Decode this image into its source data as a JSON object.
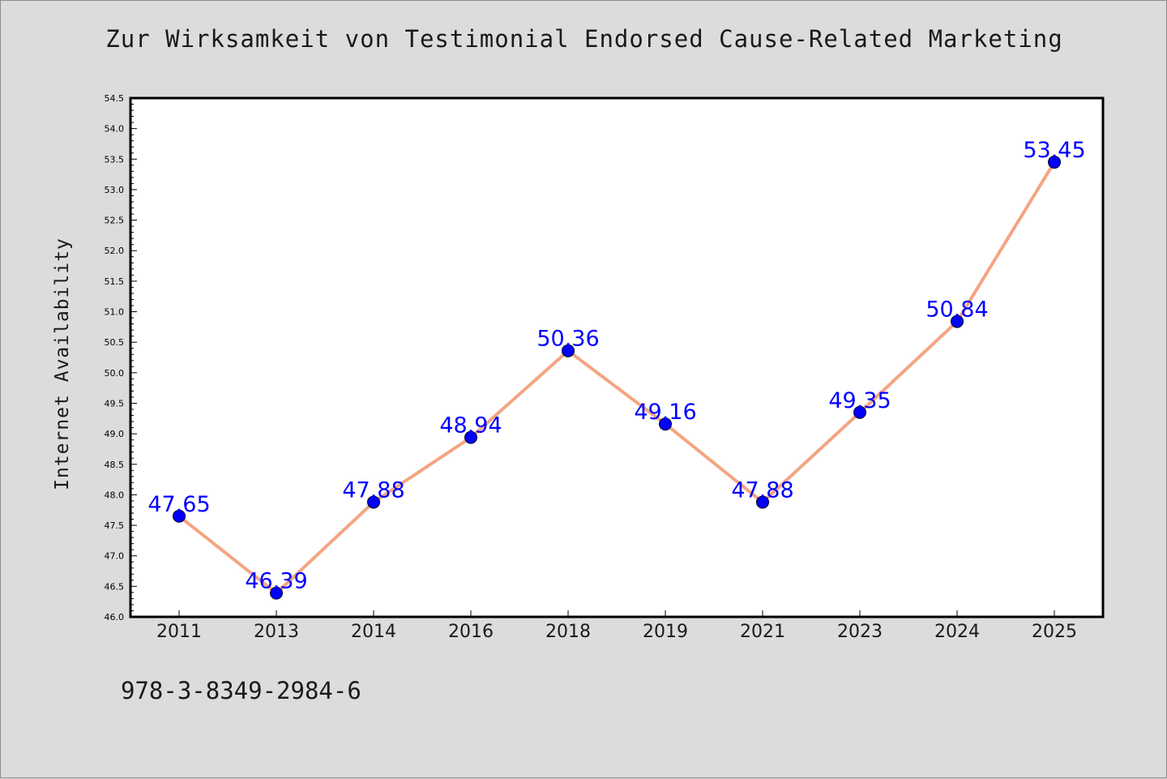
{
  "title": "Zur Wirksamkeit von Testimonial Endorsed Cause-Related Marketing",
  "footer": "978-3-8349-2984-6",
  "chart_data": {
    "type": "line",
    "title": "Zur Wirksamkeit von Testimonial Endorsed Cause-Related Marketing",
    "xlabel": "",
    "ylabel": "Internet Availability",
    "categories": [
      "2011",
      "2013",
      "2014",
      "2016",
      "2018",
      "2019",
      "2021",
      "2023",
      "2024",
      "2025"
    ],
    "series": [
      {
        "values": [
          47.65,
          46.39,
          47.88,
          48.94,
          50.36,
          49.16,
          47.88,
          49.35,
          50.84,
          53.45
        ],
        "data_labels": [
          "47.65",
          "46.39",
          "47.88",
          "48.94",
          "50.36",
          "49.16",
          "47.88",
          "49.35",
          "50.84",
          "53.45"
        ]
      }
    ],
    "ylim": [
      46.0,
      54.5
    ],
    "yticks": [
      "46.0",
      "46.5",
      "47.0",
      "47.5",
      "48.0",
      "48.5",
      "49.0",
      "49.5",
      "50.0",
      "50.5",
      "51.0",
      "51.5",
      "52.0",
      "52.5",
      "53.0",
      "53.5",
      "54.0",
      "54.5"
    ],
    "grid": false,
    "legend": "none",
    "colors": {
      "line": "#f4a582",
      "marker": "#0000ff",
      "data_label": "#0000ff",
      "plot_background": "#ffffff",
      "figure_background": "#dcdcdc"
    }
  }
}
